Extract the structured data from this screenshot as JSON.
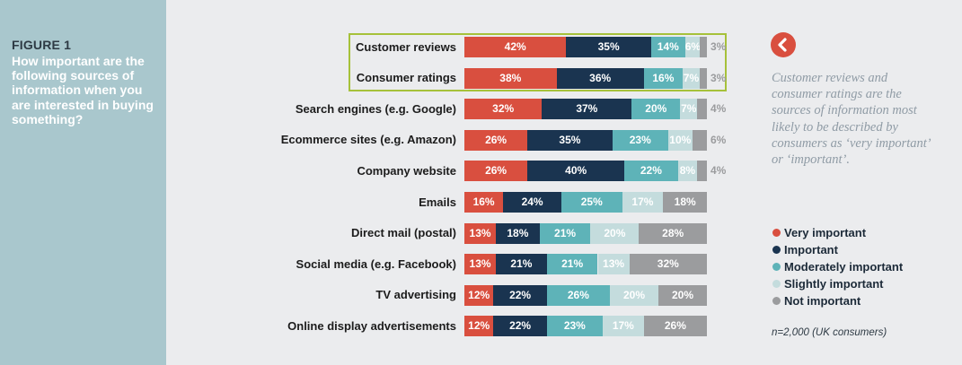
{
  "figure": {
    "label": "FIGURE 1",
    "question": "How important are the following sources of information when you are interested in buying something?"
  },
  "note": "Customer reviews and consumer ratings are the sources of information most likely to be described by consumers as ‘very important’ or ‘important’.",
  "footnote": "n=2,000 (UK consumers)",
  "colors": {
    "very_important": "#d94f3f",
    "important": "#1a3450",
    "moderately_important": "#5eb3b8",
    "slightly_important": "#c4dcdd",
    "not_important": "#9b9c9e",
    "highlight": "#a6c13a"
  },
  "icons": {
    "back": "chevron-left-icon"
  },
  "chart_data": {
    "type": "bar",
    "orientation": "horizontal",
    "stacked": true,
    "unit": "%",
    "categories": [
      "Customer reviews",
      "Consumer ratings",
      "Search engines (e.g. Google)",
      "Ecommerce sites (e.g. Amazon)",
      "Company website",
      "Emails",
      "Direct mail (postal)",
      "Social media (e.g. Facebook)",
      "TV advertising",
      "Online display advertisements"
    ],
    "highlighted_categories": [
      "Customer reviews",
      "Consumer ratings"
    ],
    "series": [
      {
        "key": "very",
        "name": "Very important",
        "values": [
          42,
          38,
          32,
          26,
          26,
          16,
          13,
          13,
          12,
          12
        ]
      },
      {
        "key": "imp",
        "name": "Important",
        "values": [
          35,
          36,
          37,
          35,
          40,
          24,
          18,
          21,
          22,
          22
        ]
      },
      {
        "key": "mod",
        "name": "Moderately important",
        "values": [
          14,
          16,
          20,
          23,
          22,
          25,
          21,
          21,
          26,
          23
        ]
      },
      {
        "key": "slight",
        "name": "Slightly important",
        "values": [
          6,
          7,
          7,
          10,
          8,
          17,
          20,
          13,
          20,
          17
        ]
      },
      {
        "key": "not",
        "name": "Not important",
        "values": [
          3,
          3,
          4,
          6,
          4,
          18,
          28,
          32,
          20,
          26
        ]
      }
    ],
    "legend_position": "right"
  }
}
